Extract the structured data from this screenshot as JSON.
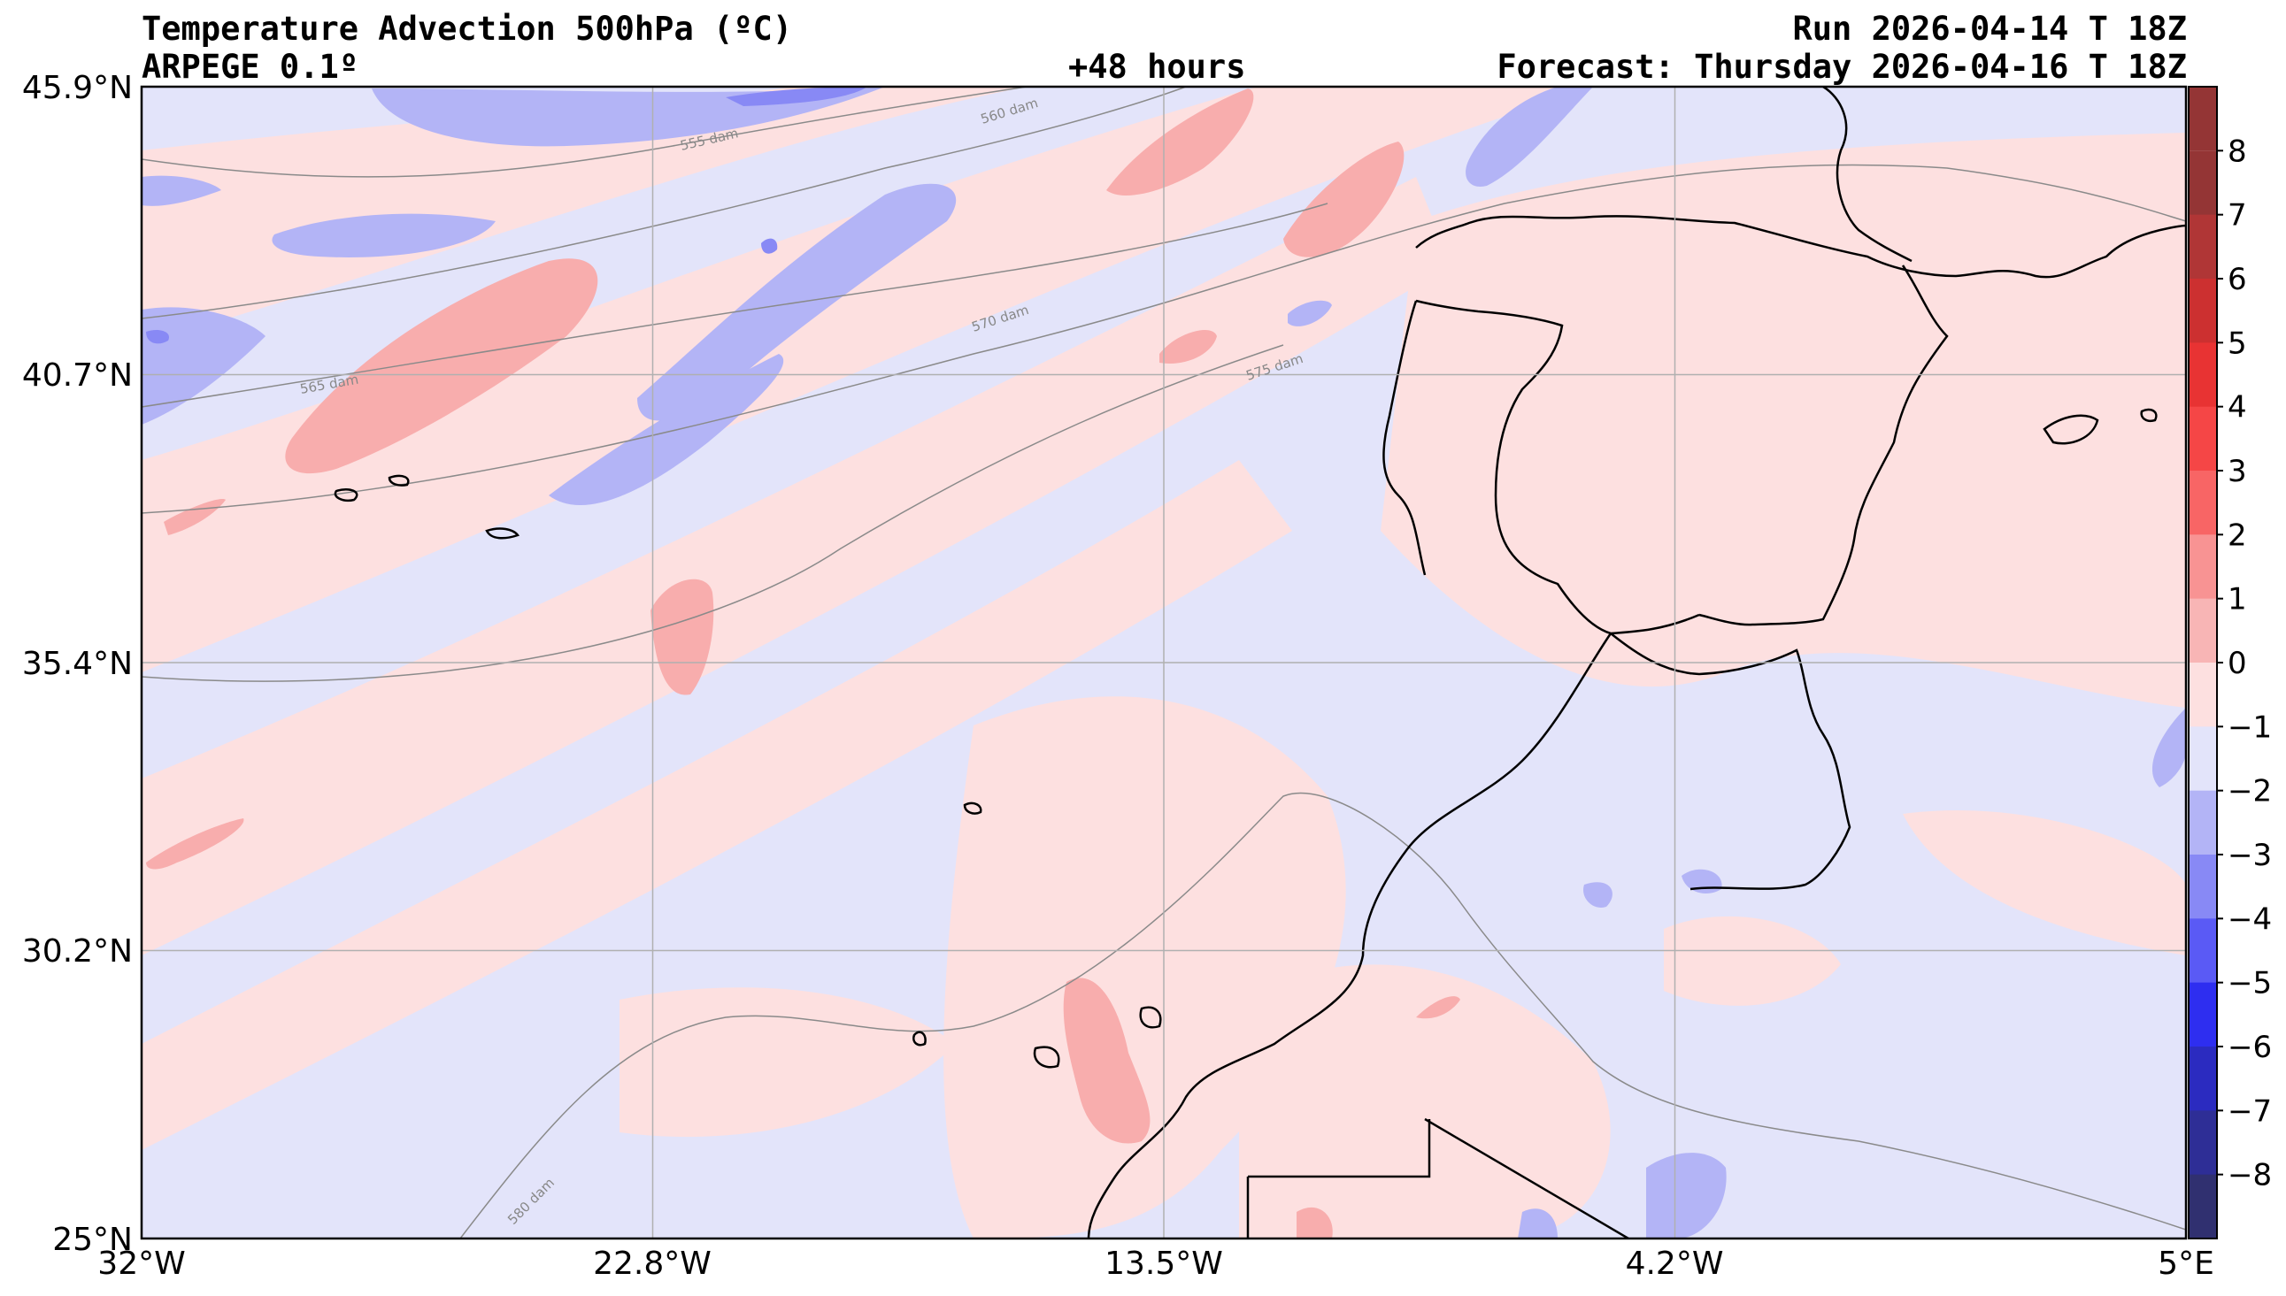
{
  "header": {
    "title": "Temperature Advection  500hPa (ºC)",
    "model": "ARPEGE 0.1º",
    "run": "Run 2026-04-14 T 18Z",
    "lead": "+48 hours",
    "forecast": "Forecast: Thursday 2026-04-16 T 18Z"
  },
  "axes": {
    "lat_labels": [
      "45.9°N",
      "40.7°N",
      "35.4°N",
      "30.2°N",
      "25°N"
    ],
    "lon_labels": [
      "32°W",
      "22.8°W",
      "13.5°W",
      "4.2°W",
      "5°E"
    ]
  },
  "colorbar": {
    "labels": [
      "8",
      "7",
      "6",
      "5",
      "4",
      "3",
      "2",
      "1",
      "0",
      "−1",
      "−2",
      "−3",
      "−4",
      "−5",
      "−6",
      "−7",
      "−8"
    ],
    "colors": [
      "#943535",
      "#b03636",
      "#cc3030",
      "#e83333",
      "#f54646",
      "#f86565",
      "#f89393",
      "#f8b5b5",
      "#fde0e0",
      "#e3e4fa",
      "#b3b4f6",
      "#8889f5",
      "#5a5af5",
      "#2e2ef0",
      "#2b2bc0",
      "#2e2e96",
      "#303070"
    ]
  },
  "contours": {
    "labels": [
      "555 dam",
      "560 dam",
      "565 dam",
      "570 dam",
      "575 dam",
      "580 dam"
    ]
  },
  "map_colors": {
    "background": "#e3e4fa",
    "warm_light": "#fde0e0",
    "warm": "#f8adad",
    "warm_strong": "#f57f7f",
    "cold": "#b3b4f6",
    "cold_strong": "#8889f5",
    "grid": "#b0b0b0",
    "coast": "#000000"
  }
}
